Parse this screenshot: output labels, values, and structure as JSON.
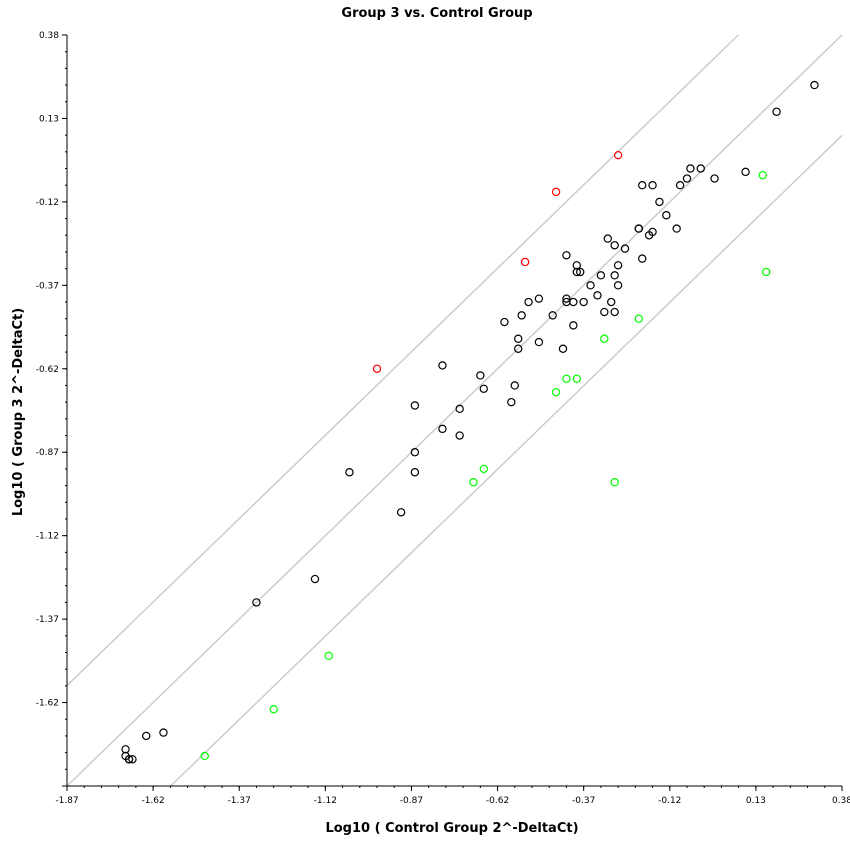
{
  "chart_data": {
    "type": "scatter",
    "title": "Group 3 vs. Control Group",
    "xlabel": "Log10 ( Control Group 2^-DeltaCt)",
    "ylabel": "Log10 ( Group 3 2^-DeltaCt)",
    "xlim": [
      -1.87,
      0.38
    ],
    "ylim": [
      -1.87,
      0.38
    ],
    "xticks": [
      -1.87,
      -1.62,
      -1.37,
      -1.12,
      -0.87,
      -0.62,
      -0.37,
      -0.12,
      0.13,
      0.38
    ],
    "yticks": [
      -1.87,
      -1.62,
      -1.37,
      -1.12,
      -0.87,
      -0.62,
      -0.37,
      -0.12,
      0.13,
      0.38
    ],
    "xtick_labels": [
      "-1.87",
      "-1.62",
      "-1.37",
      "-1.12",
      "-0.87",
      "-0.62",
      "-0.37",
      "-0.12",
      "0.13",
      "0.38"
    ],
    "ytick_labels": [
      "",
      "-1.62",
      "-1.37",
      "-1.12",
      "-0.87",
      "-0.62",
      "-0.37",
      "-0.12",
      "0.13",
      "0.38"
    ],
    "grid": false,
    "reference_lines": [
      {
        "intercept": 0.301
      },
      {
        "intercept": 0
      },
      {
        "intercept": -0.301
      }
    ],
    "colors": {
      "unchanged": "#000000",
      "up": "#ff0000",
      "down": "#00ff00",
      "reference": "#cccccc"
    },
    "series": [
      {
        "color_key": "unchanged",
        "points": [
          [
            -1.7,
            -1.78
          ],
          [
            -1.7,
            -1.76
          ],
          [
            -1.69,
            -1.79
          ],
          [
            -1.69,
            -1.79
          ],
          [
            -1.68,
            -1.79
          ],
          [
            -1.64,
            -1.72
          ],
          [
            -1.59,
            -1.71
          ],
          [
            -1.32,
            -1.32
          ],
          [
            -1.15,
            -1.25
          ],
          [
            -1.05,
            -0.93
          ],
          [
            -0.9,
            -1.05
          ],
          [
            -0.86,
            -0.73
          ],
          [
            -0.86,
            -0.87
          ],
          [
            -0.86,
            -0.93
          ],
          [
            -0.78,
            -0.61
          ],
          [
            -0.78,
            -0.8
          ],
          [
            -0.73,
            -0.74
          ],
          [
            -0.73,
            -0.82
          ],
          [
            -0.67,
            -0.64
          ],
          [
            -0.66,
            -0.68
          ],
          [
            -0.6,
            -0.48
          ],
          [
            -0.58,
            -0.72
          ],
          [
            -0.57,
            -0.67
          ],
          [
            -0.56,
            -0.53
          ],
          [
            -0.56,
            -0.56
          ],
          [
            -0.55,
            -0.46
          ],
          [
            -0.53,
            -0.42
          ],
          [
            -0.5,
            -0.41
          ],
          [
            -0.5,
            -0.54
          ],
          [
            -0.46,
            -0.46
          ],
          [
            -0.43,
            -0.56
          ],
          [
            -0.42,
            -0.42
          ],
          [
            -0.42,
            -0.41
          ],
          [
            -0.42,
            -0.28
          ],
          [
            -0.4,
            -0.42
          ],
          [
            -0.4,
            -0.49
          ],
          [
            -0.39,
            -0.31
          ],
          [
            -0.39,
            -0.33
          ],
          [
            -0.38,
            -0.33
          ],
          [
            -0.37,
            -0.42
          ],
          [
            -0.35,
            -0.37
          ],
          [
            -0.33,
            -0.4
          ],
          [
            -0.32,
            -0.34
          ],
          [
            -0.31,
            -0.45
          ],
          [
            -0.3,
            -0.23
          ],
          [
            -0.29,
            -0.42
          ],
          [
            -0.28,
            -0.34
          ],
          [
            -0.28,
            -0.45
          ],
          [
            -0.28,
            -0.25
          ],
          [
            -0.27,
            -0.37
          ],
          [
            -0.27,
            -0.31
          ],
          [
            -0.25,
            -0.26
          ],
          [
            -0.21,
            -0.2
          ],
          [
            -0.21,
            -0.2
          ],
          [
            -0.2,
            -0.29
          ],
          [
            -0.2,
            -0.07
          ],
          [
            -0.18,
            -0.22
          ],
          [
            -0.17,
            -0.07
          ],
          [
            -0.17,
            -0.21
          ],
          [
            -0.15,
            -0.12
          ],
          [
            -0.13,
            -0.16
          ],
          [
            -0.1,
            -0.2
          ],
          [
            -0.09,
            -0.07
          ],
          [
            -0.07,
            -0.05
          ],
          [
            -0.06,
            -0.02
          ],
          [
            -0.03,
            -0.02
          ],
          [
            0.01,
            -0.05
          ],
          [
            0.1,
            -0.03
          ],
          [
            0.3,
            0.23
          ],
          [
            0.19,
            0.15
          ]
        ]
      },
      {
        "color_key": "up",
        "points": [
          [
            -0.97,
            -0.62
          ],
          [
            -0.54,
            -0.3
          ],
          [
            -0.45,
            -0.09
          ],
          [
            -0.27,
            0.02
          ]
        ]
      },
      {
        "color_key": "down",
        "points": [
          [
            -1.47,
            -1.78
          ],
          [
            -1.27,
            -1.64
          ],
          [
            -1.11,
            -1.48
          ],
          [
            -0.69,
            -0.96
          ],
          [
            -0.66,
            -0.92
          ],
          [
            -0.45,
            -0.69
          ],
          [
            -0.42,
            -0.65
          ],
          [
            -0.39,
            -0.65
          ],
          [
            -0.31,
            -0.53
          ],
          [
            -0.28,
            -0.96
          ],
          [
            -0.21,
            -0.47
          ],
          [
            0.15,
            -0.04
          ],
          [
            0.16,
            -0.33
          ]
        ]
      }
    ]
  }
}
